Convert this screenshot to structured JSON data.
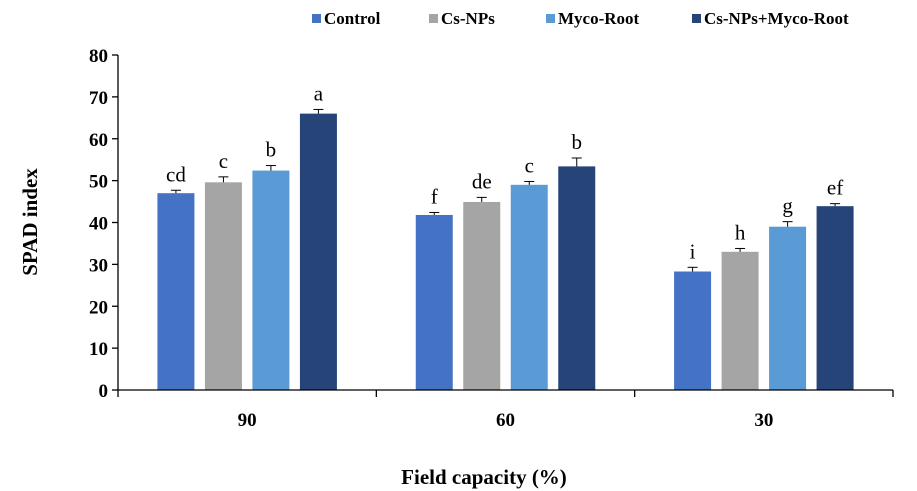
{
  "chart_data": {
    "type": "bar",
    "xlabel": "Field capacity (%)",
    "ylabel": "SPAD index",
    "ylim": [
      0,
      80
    ],
    "yticks": [
      0,
      10,
      20,
      30,
      40,
      50,
      60,
      70,
      80
    ],
    "grid": false,
    "legend_position": "top",
    "categories": [
      "90",
      "60",
      "30"
    ],
    "series": [
      {
        "name": "Control",
        "color": "#4472C4",
        "values": [
          47,
          41.8,
          28.3
        ],
        "errors": [
          0.7,
          0.6,
          1.0
        ],
        "letters": [
          "cd",
          "f",
          "i"
        ]
      },
      {
        "name": "Cs-NPs",
        "color": "#A5A5A5",
        "values": [
          49.6,
          44.9,
          33
        ],
        "errors": [
          1.3,
          1.1,
          0.8
        ],
        "letters": [
          "c",
          "de",
          "h"
        ]
      },
      {
        "name": "Myco-Root",
        "color": "#5B9BD5",
        "values": [
          52.4,
          49,
          39
        ],
        "errors": [
          1.2,
          0.8,
          1.2
        ],
        "letters": [
          "b",
          "c",
          "g"
        ]
      },
      {
        "name": "Cs-NPs+Myco-Root",
        "color": "#264478",
        "values": [
          66,
          53.4,
          43.9
        ],
        "errors": [
          1.0,
          2.0,
          0.6
        ],
        "letters": [
          "a",
          "b",
          "ef"
        ]
      }
    ]
  }
}
